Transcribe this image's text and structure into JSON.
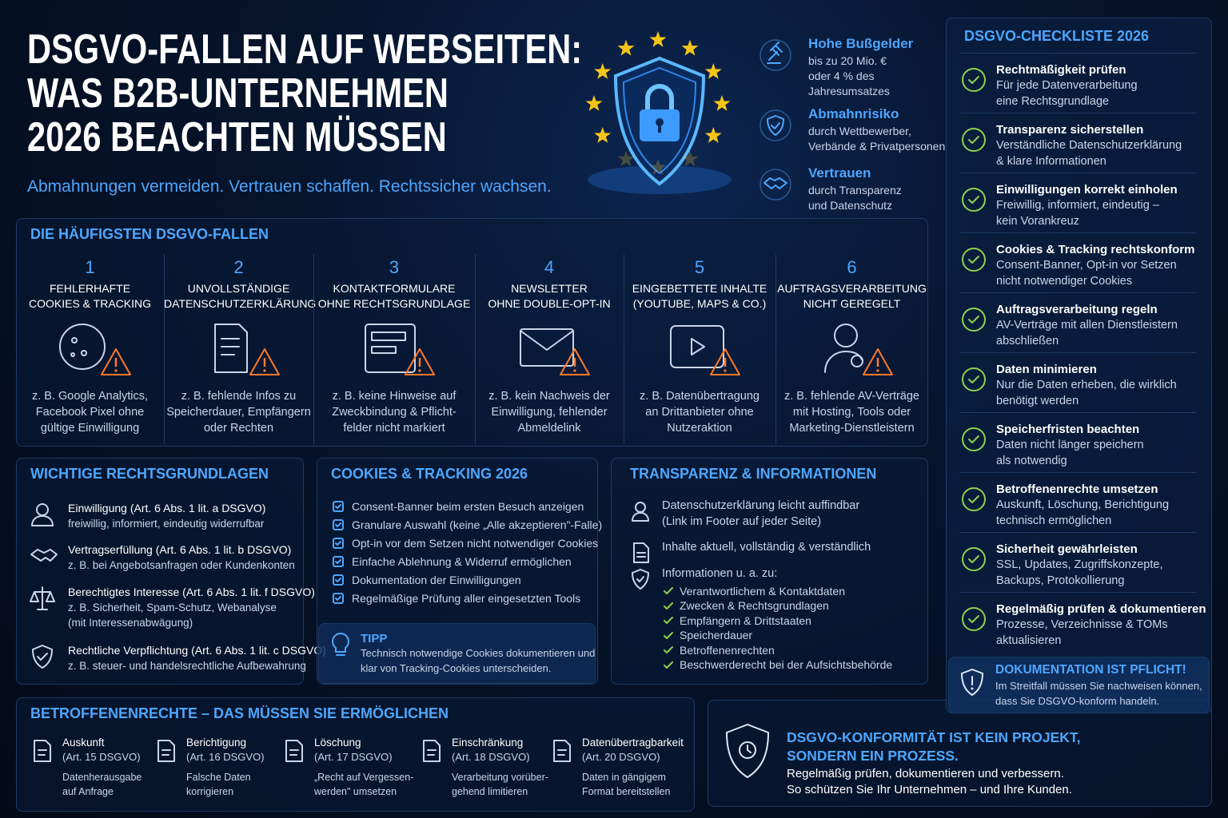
{
  "header": {
    "title_lines": [
      "DSGVO-FALLEN AUF WEBSEITEN:",
      "WAS B2B-UNTERNEHMEN",
      "2026 BEACHTEN MÜSSEN"
    ],
    "subtitle": "Abmahnungen vermeiden. Vertrauen schaffen. Rechtssicher wachsen."
  },
  "highlights": [
    {
      "title": "Hohe Bußgelder",
      "lines": [
        "bis zu 20 Mio. €",
        "oder 4 % des",
        "Jahresumsatzes"
      ]
    },
    {
      "title": "Abmahnrisiko",
      "lines": [
        "durch Wettbewerber,",
        "Verbände & Privatpersonen"
      ]
    },
    {
      "title": "Vertrauen",
      "lines": [
        "durch Transparenz",
        "und Datenschutz"
      ]
    }
  ],
  "traps": {
    "title": "DIE HÄUFIGSTEN DSGVO-FALLEN",
    "items": [
      {
        "number": "1",
        "title_lines": [
          "FEHLERHAFTE",
          "COOKIES & TRACKING"
        ],
        "example_lines": [
          "z. B. Google Analytics,",
          "Facebook Pixel ohne",
          "gültige Einwilligung"
        ]
      },
      {
        "number": "2",
        "title_lines": [
          "UNVOLLSTÄNDIGE",
          "DATENSCHUTZERKLÄRUNG"
        ],
        "example_lines": [
          "z. B. fehlende Infos zu",
          "Speicherdauer, Empfängern",
          "oder Rechten"
        ]
      },
      {
        "number": "3",
        "title_lines": [
          "KONTAKTFORMULARE",
          "OHNE RECHTSGRUNDLAGE"
        ],
        "example_lines": [
          "z. B. keine Hinweise auf",
          "Zweckbindung & Pflicht-",
          "felder nicht markiert"
        ]
      },
      {
        "number": "4",
        "title_lines": [
          "NEWSLETTER",
          "OHNE DOUBLE-OPT-IN"
        ],
        "example_lines": [
          "z. B. kein Nachweis der",
          "Einwilligung, fehlender",
          "Abmeldelink"
        ]
      },
      {
        "number": "5",
        "title_lines": [
          "EINGEBETTETE INHALTE",
          "(YOUTUBE, MAPS & CO.)"
        ],
        "example_lines": [
          "z. B. Datenübertragung",
          "an Drittanbieter ohne",
          "Nutzeraktion"
        ]
      },
      {
        "number": "6",
        "title_lines": [
          "AUFTRAGSVERARBEITUNG",
          "NICHT GEREGELT"
        ],
        "example_lines": [
          "z. B. fehlende AV-Verträge",
          "mit Hosting, Tools oder",
          "Marketing-Dienstleistern"
        ]
      }
    ]
  },
  "legal_bases": {
    "title": "WICHTIGE RECHTSGRUNDLAGEN",
    "items": [
      {
        "title": "Einwilligung (Art. 6 Abs. 1 lit. a DSGVO)",
        "lines": [
          "freiwillig, informiert, eindeutig widerrufbar"
        ]
      },
      {
        "title": "Vertragserfüllung (Art. 6 Abs. 1 lit. b DSGVO)",
        "lines": [
          "z. B. bei Angebotsanfragen oder Kundenkonten"
        ]
      },
      {
        "title": "Berechtigtes Interesse (Art. 6 Abs. 1 lit. f DSGVO)",
        "lines": [
          "z. B. Sicherheit, Spam-Schutz, Webanalyse",
          "(mit Interessenabwägung)"
        ]
      },
      {
        "title": "Rechtliche Verpflichtung (Art. 6 Abs. 1 lit. c DSGVO)",
        "lines": [
          "z. B. steuer- und handelsrechtliche Aufbewahrung"
        ]
      }
    ]
  },
  "cookies": {
    "title": "COOKIES & TRACKING 2026",
    "items": [
      "Consent-Banner beim ersten Besuch anzeigen",
      "Granulare Auswahl (keine „Alle akzeptieren\"-Falle)",
      "Opt-in vor dem Setzen nicht notwendiger Cookies",
      "Einfache Ablehnung & Widerruf ermöglichen",
      "Dokumentation der Einwilligungen",
      "Regelmäßige Prüfung aller eingesetzten Tools"
    ],
    "tip": {
      "title": "TIPP",
      "lines": [
        "Technisch notwendige Cookies dokumentieren und",
        "klar von Tracking-Cookies unterscheiden."
      ]
    }
  },
  "transparency": {
    "title": "TRANSPARENZ & INFORMATIONEN",
    "items": [
      {
        "lines": [
          "Datenschutzerklärung leicht auffindbar",
          "(Link im Footer auf jeder Seite)"
        ]
      },
      {
        "lines": [
          "Inhalte aktuell, vollständig & verständlich"
        ]
      }
    ],
    "info": {
      "title": "Informationen u. a. zu:",
      "items": [
        "Verantwortlichem & Kontaktdaten",
        "Zwecken & Rechtsgrundlagen",
        "Empfängern & Drittstaaten",
        "Speicherdauer",
        "Betroffenenrechten",
        "Beschwerderecht bei der Aufsichtsbehörde"
      ]
    }
  },
  "rights": {
    "title": "BETROFFENENRECHTE – DAS MÜSSEN SIE ERMÖGLICHEN",
    "items": [
      {
        "title": "Auskunft",
        "ref": "(Art. 15 DSGVO)",
        "lines": [
          "Datenherausgabe",
          "auf Anfrage"
        ]
      },
      {
        "title": "Berichtigung",
        "ref": "(Art. 16 DSGVO)",
        "lines": [
          "Falsche Daten",
          "korrigieren"
        ]
      },
      {
        "title": "Löschung",
        "ref": "(Art. 17 DSGVO)",
        "lines": [
          "„Recht auf Vergessen-",
          "werden\" umsetzen"
        ]
      },
      {
        "title": "Einschränkung",
        "ref": "(Art. 18 DSGVO)",
        "lines": [
          "Verarbeitung vorüber-",
          "gehend limitieren"
        ]
      },
      {
        "title": "Datenübertragbarkeit",
        "ref": "(Art. 20 DSGVO)",
        "lines": [
          "Daten in gängigem",
          "Format bereitstellen"
        ]
      }
    ]
  },
  "conclusion": {
    "title_lines": [
      "DSGVO-KONFORMITÄT IST KEIN PROJEKT,",
      "SONDERN EIN PROZESS."
    ],
    "lines": [
      "Regelmäßig prüfen, dokumentieren und verbessern.",
      "So schützen Sie Ihr Unternehmen – und Ihre Kunden."
    ]
  },
  "checklist": {
    "title": "DSGVO-CHECKLISTE 2026",
    "items": [
      {
        "title": "Rechtmäßigkeit prüfen",
        "lines": [
          "Für jede Datenverarbeitung",
          "eine Rechtsgrundlage"
        ]
      },
      {
        "title": "Transparenz sicherstellen",
        "lines": [
          "Verständliche Datenschutzerklärung",
          "& klare Informationen"
        ]
      },
      {
        "title": "Einwilligungen korrekt einholen",
        "lines": [
          "Freiwillig, informiert, eindeutig –",
          "kein Vorankreuz"
        ]
      },
      {
        "title": "Cookies & Tracking rechtskonform",
        "lines": [
          "Consent-Banner, Opt-in vor Setzen",
          "nicht notwendiger Cookies"
        ]
      },
      {
        "title": "Auftragsverarbeitung regeln",
        "lines": [
          "AV-Verträge mit allen Dienstleistern",
          "abschließen"
        ]
      },
      {
        "title": "Daten minimieren",
        "lines": [
          "Nur die Daten erheben, die wirklich",
          "benötigt werden"
        ]
      },
      {
        "title": "Speicherfristen beachten",
        "lines": [
          "Daten nicht länger speichern",
          "als notwendig"
        ]
      },
      {
        "title": "Betroffenenrechte umsetzen",
        "lines": [
          "Auskunft, Löschung, Berichtigung",
          "technisch ermöglichen"
        ]
      },
      {
        "title": "Sicherheit gewährleisten",
        "lines": [
          "SSL, Updates, Zugriffskonzepte,",
          "Backups, Protokollierung"
        ]
      },
      {
        "title": "Regelmäßig prüfen & dokumentieren",
        "lines": [
          "Prozesse, Verzeichnisse & TOMs",
          "aktualisieren"
        ]
      }
    ],
    "note": {
      "title": "DOKUMENTATION IST PFLICHT!",
      "lines": [
        "Im Streitfall müssen Sie nachweisen können,",
        "dass Sie DSGVO-konform handeln."
      ]
    }
  }
}
